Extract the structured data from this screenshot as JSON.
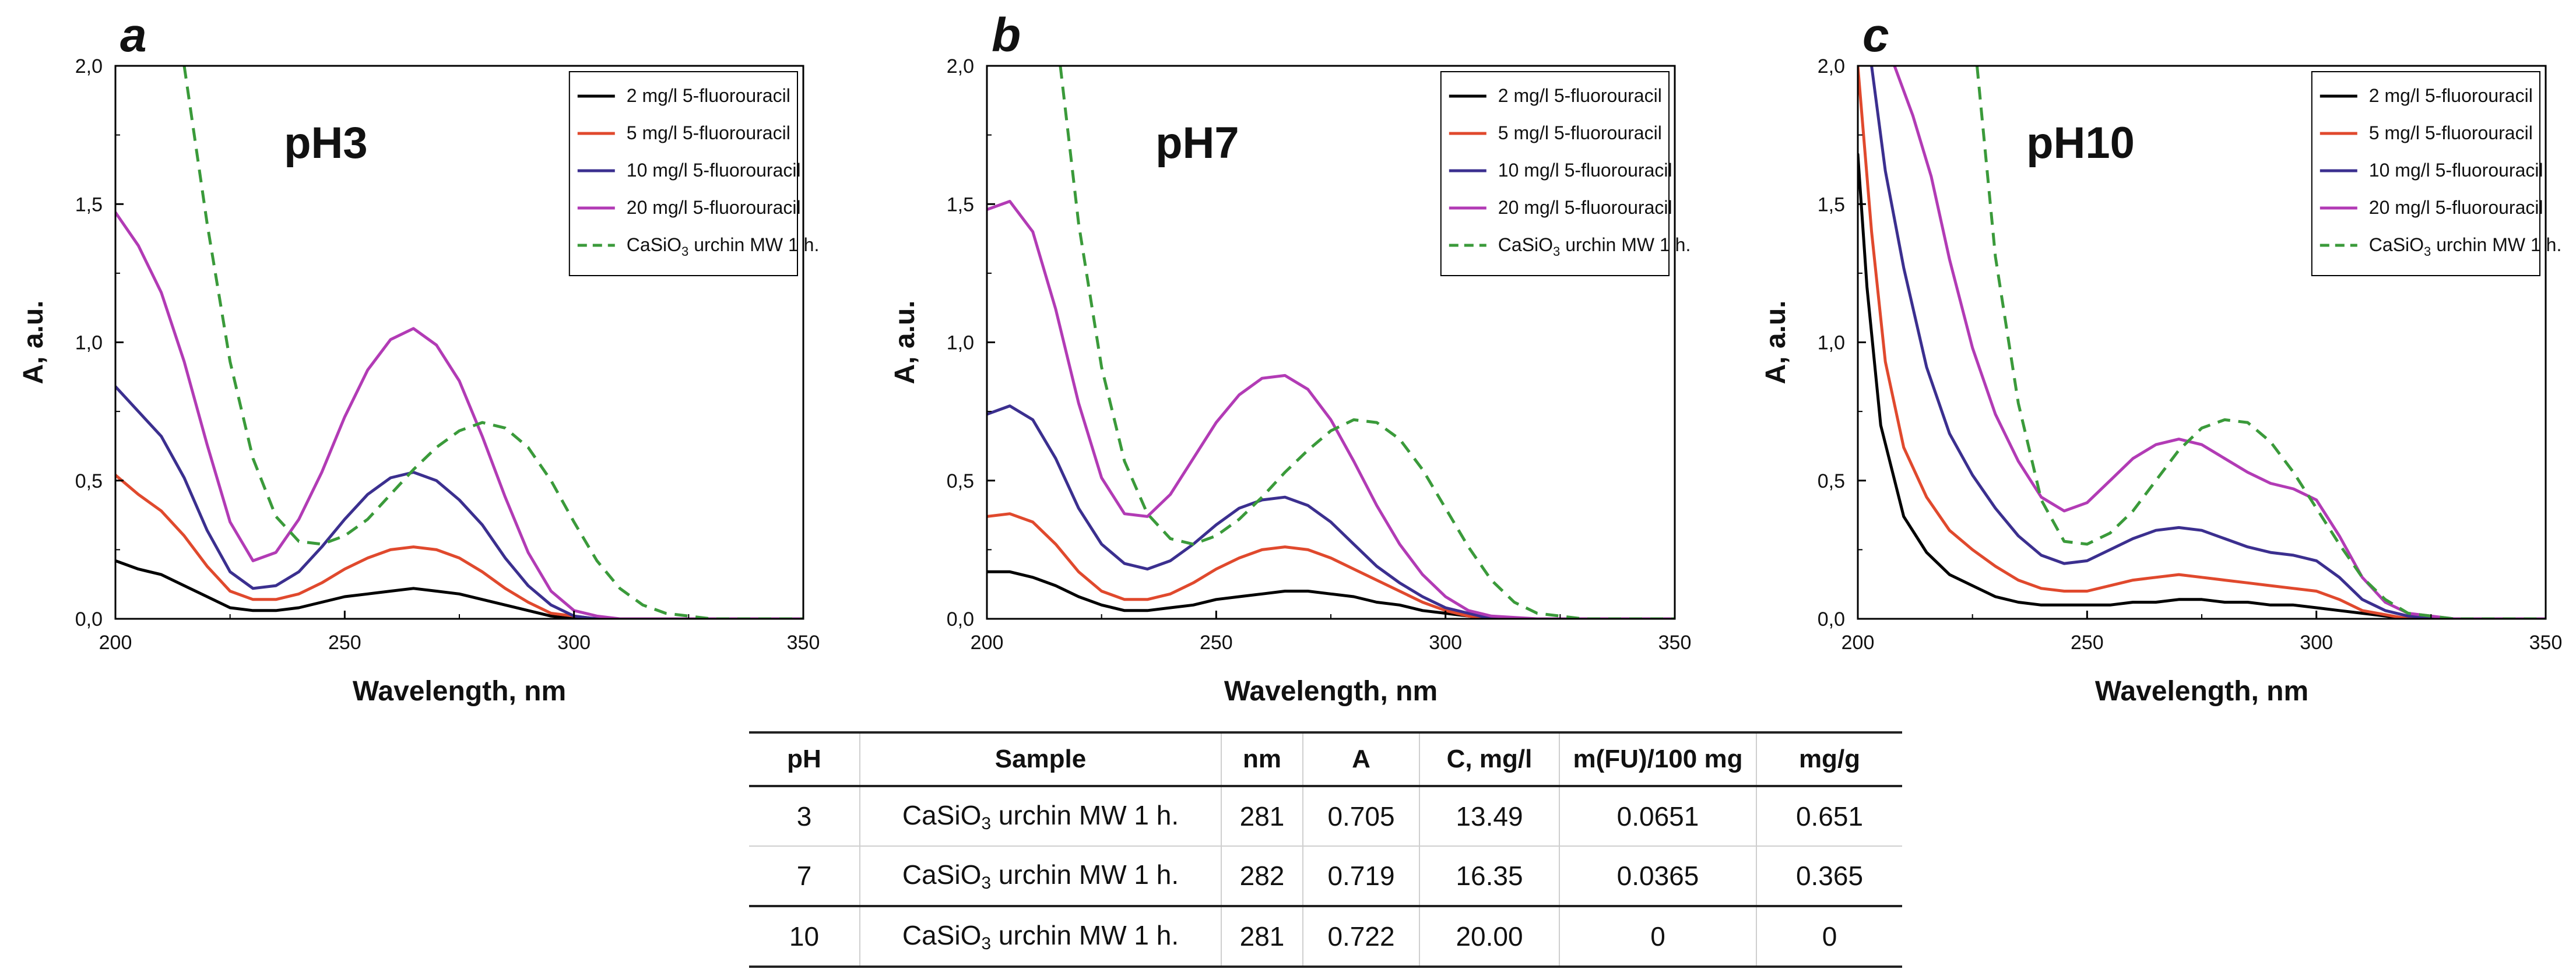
{
  "chart_data": [
    {
      "panel_letter": "a",
      "type": "line",
      "ph_label": "pH3",
      "xlabel": "Wavelength, nm",
      "ylabel": "A, a.u.",
      "xlim": [
        200,
        350
      ],
      "ylim": [
        0,
        2
      ],
      "xticks": [
        "200",
        "250",
        "300",
        "350"
      ],
      "yticks": [
        "0,0",
        "0,5",
        "1,0",
        "1,5",
        "2,0"
      ],
      "legend_position": "top-right",
      "series": [
        {
          "name": "2 mg/l 5-fluorouracil",
          "color": "#000000",
          "dashed": false,
          "x": [
            200,
            205,
            210,
            215,
            220,
            225,
            230,
            235,
            240,
            245,
            250,
            255,
            260,
            265,
            270,
            275,
            280,
            285,
            290,
            295,
            300,
            305,
            310,
            320,
            330,
            350
          ],
          "y": [
            0.21,
            0.18,
            0.16,
            0.12,
            0.08,
            0.04,
            0.03,
            0.03,
            0.04,
            0.06,
            0.08,
            0.09,
            0.1,
            0.11,
            0.1,
            0.09,
            0.07,
            0.05,
            0.03,
            0.01,
            0.0,
            0.0,
            0.0,
            0.0,
            0.0,
            0.0
          ]
        },
        {
          "name": "5 mg/l 5-fluorouracil",
          "color": "#e0492d",
          "dashed": false,
          "x": [
            200,
            205,
            210,
            215,
            220,
            225,
            230,
            235,
            240,
            245,
            250,
            255,
            260,
            265,
            270,
            275,
            280,
            285,
            290,
            295,
            300,
            305,
            310,
            320,
            330,
            350
          ],
          "y": [
            0.52,
            0.45,
            0.39,
            0.3,
            0.19,
            0.1,
            0.07,
            0.07,
            0.09,
            0.13,
            0.18,
            0.22,
            0.25,
            0.26,
            0.25,
            0.22,
            0.17,
            0.11,
            0.06,
            0.02,
            0.01,
            0.0,
            0.0,
            0.0,
            0.0,
            0.0
          ]
        },
        {
          "name": "10 mg/l 5-fluorouracil",
          "color": "#3b2f8f",
          "dashed": false,
          "x": [
            200,
            205,
            210,
            215,
            220,
            225,
            230,
            235,
            240,
            245,
            250,
            255,
            260,
            265,
            270,
            275,
            280,
            285,
            290,
            295,
            300,
            305,
            310,
            320,
            330,
            350
          ],
          "y": [
            0.84,
            0.75,
            0.66,
            0.51,
            0.32,
            0.17,
            0.11,
            0.12,
            0.17,
            0.26,
            0.36,
            0.45,
            0.51,
            0.53,
            0.5,
            0.43,
            0.34,
            0.22,
            0.12,
            0.05,
            0.01,
            0.0,
            0.0,
            0.0,
            0.0,
            0.0
          ]
        },
        {
          "name": "20 mg/l 5-fluorouracil",
          "color": "#b23bb5",
          "dashed": false,
          "x": [
            200,
            205,
            210,
            215,
            220,
            225,
            230,
            235,
            240,
            245,
            250,
            255,
            260,
            265,
            270,
            275,
            280,
            285,
            290,
            295,
            300,
            305,
            310,
            320,
            330,
            350
          ],
          "y": [
            1.47,
            1.35,
            1.18,
            0.93,
            0.63,
            0.35,
            0.21,
            0.24,
            0.36,
            0.53,
            0.73,
            0.9,
            1.01,
            1.05,
            0.99,
            0.86,
            0.66,
            0.44,
            0.24,
            0.1,
            0.03,
            0.01,
            0.0,
            0.0,
            0.0,
            0.0
          ]
        },
        {
          "name": "CaSiO3 urchin MW 1 h.",
          "color": "#3a9a3a",
          "dashed": true,
          "x": [
            215,
            220,
            225,
            230,
            235,
            240,
            245,
            250,
            255,
            260,
            265,
            270,
            275,
            280,
            285,
            290,
            295,
            300,
            305,
            310,
            315,
            320,
            330,
            340,
            350
          ],
          "y": [
            2.0,
            1.43,
            0.93,
            0.58,
            0.37,
            0.28,
            0.27,
            0.3,
            0.36,
            0.45,
            0.54,
            0.62,
            0.68,
            0.71,
            0.69,
            0.62,
            0.5,
            0.35,
            0.21,
            0.11,
            0.05,
            0.02,
            0.0,
            0.0,
            0.0
          ]
        }
      ]
    },
    {
      "panel_letter": "b",
      "type": "line",
      "ph_label": "pH7",
      "xlabel": "Wavelength, nm",
      "ylabel": "A, a.u.",
      "xlim": [
        200,
        350
      ],
      "ylim": [
        0,
        2
      ],
      "xticks": [
        "200",
        "250",
        "300",
        "350"
      ],
      "yticks": [
        "0,0",
        "0,5",
        "1,0",
        "1,5",
        "2,0"
      ],
      "legend_position": "top-right",
      "series": [
        {
          "name": "2 mg/l 5-fluorouracil",
          "color": "#000000",
          "dashed": false,
          "x": [
            200,
            205,
            210,
            215,
            220,
            225,
            230,
            235,
            240,
            245,
            250,
            255,
            260,
            265,
            270,
            275,
            280,
            285,
            290,
            295,
            300,
            305,
            310,
            320,
            330,
            350
          ],
          "y": [
            0.17,
            0.17,
            0.15,
            0.12,
            0.08,
            0.05,
            0.03,
            0.03,
            0.04,
            0.05,
            0.07,
            0.08,
            0.09,
            0.1,
            0.1,
            0.09,
            0.08,
            0.06,
            0.05,
            0.03,
            0.02,
            0.01,
            0.0,
            0.0,
            0.0,
            0.0
          ]
        },
        {
          "name": "5 mg/l 5-fluorouracil",
          "color": "#e0492d",
          "dashed": false,
          "x": [
            200,
            205,
            210,
            215,
            220,
            225,
            230,
            235,
            240,
            245,
            250,
            255,
            260,
            265,
            270,
            275,
            280,
            285,
            290,
            295,
            300,
            305,
            310,
            320,
            330,
            350
          ],
          "y": [
            0.37,
            0.38,
            0.35,
            0.27,
            0.17,
            0.1,
            0.07,
            0.07,
            0.09,
            0.13,
            0.18,
            0.22,
            0.25,
            0.26,
            0.25,
            0.22,
            0.18,
            0.14,
            0.1,
            0.06,
            0.03,
            0.01,
            0.0,
            0.0,
            0.0,
            0.0
          ]
        },
        {
          "name": "10 mg/l 5-fluorouracil",
          "color": "#3b2f8f",
          "dashed": false,
          "x": [
            200,
            205,
            210,
            215,
            220,
            225,
            230,
            235,
            240,
            245,
            250,
            255,
            260,
            265,
            270,
            275,
            280,
            285,
            290,
            295,
            300,
            305,
            310,
            320,
            330,
            350
          ],
          "y": [
            0.74,
            0.77,
            0.72,
            0.58,
            0.4,
            0.27,
            0.2,
            0.18,
            0.21,
            0.27,
            0.34,
            0.4,
            0.43,
            0.44,
            0.41,
            0.35,
            0.27,
            0.19,
            0.13,
            0.08,
            0.04,
            0.02,
            0.0,
            0.0,
            0.0,
            0.0
          ]
        },
        {
          "name": "20 mg/l 5-fluorouracil",
          "color": "#b23bb5",
          "dashed": false,
          "x": [
            200,
            205,
            210,
            215,
            220,
            225,
            230,
            235,
            240,
            245,
            250,
            255,
            260,
            265,
            270,
            275,
            280,
            285,
            290,
            295,
            300,
            305,
            310,
            320,
            330,
            350
          ],
          "y": [
            1.48,
            1.51,
            1.4,
            1.12,
            0.78,
            0.51,
            0.38,
            0.37,
            0.45,
            0.58,
            0.71,
            0.81,
            0.87,
            0.88,
            0.83,
            0.72,
            0.57,
            0.41,
            0.27,
            0.16,
            0.08,
            0.03,
            0.01,
            0.0,
            0.0,
            0.0
          ]
        },
        {
          "name": "CaSiO3 urchin MW 1 h.",
          "color": "#3a9a3a",
          "dashed": true,
          "x": [
            216,
            220,
            225,
            230,
            235,
            240,
            245,
            250,
            255,
            260,
            265,
            270,
            275,
            280,
            285,
            290,
            295,
            300,
            305,
            310,
            315,
            320,
            330,
            340,
            350
          ],
          "y": [
            2.0,
            1.43,
            0.91,
            0.57,
            0.38,
            0.29,
            0.27,
            0.3,
            0.36,
            0.44,
            0.53,
            0.61,
            0.68,
            0.72,
            0.71,
            0.65,
            0.54,
            0.4,
            0.26,
            0.14,
            0.06,
            0.02,
            0.0,
            0.0,
            0.0
          ]
        }
      ]
    },
    {
      "panel_letter": "c",
      "type": "line",
      "ph_label": "pH10",
      "xlabel": "Wavelength, nm",
      "ylabel": "A, a.u.",
      "xlim": [
        200,
        350
      ],
      "ylim": [
        0,
        2
      ],
      "xticks": [
        "200",
        "250",
        "300",
        "350"
      ],
      "yticks": [
        "0,0",
        "0,5",
        "1,0",
        "1,5",
        "2,0"
      ],
      "legend_position": "top-right",
      "series": [
        {
          "name": "2 mg/l 5-fluorouracil",
          "color": "#000000",
          "dashed": false,
          "x": [
            200,
            202,
            205,
            210,
            215,
            220,
            225,
            230,
            235,
            240,
            245,
            250,
            255,
            260,
            265,
            270,
            275,
            280,
            285,
            290,
            295,
            300,
            305,
            310,
            320,
            330,
            350
          ],
          "y": [
            1.68,
            1.2,
            0.7,
            0.37,
            0.24,
            0.16,
            0.12,
            0.08,
            0.06,
            0.05,
            0.05,
            0.05,
            0.05,
            0.06,
            0.06,
            0.07,
            0.07,
            0.06,
            0.06,
            0.05,
            0.05,
            0.04,
            0.03,
            0.02,
            0.0,
            0.0,
            0.0
          ]
        },
        {
          "name": "5 mg/l 5-fluorouracil",
          "color": "#e0492d",
          "dashed": false,
          "x": [
            200,
            203,
            206,
            210,
            215,
            220,
            225,
            230,
            235,
            240,
            245,
            250,
            255,
            260,
            265,
            270,
            275,
            280,
            285,
            290,
            295,
            300,
            305,
            310,
            320,
            330,
            350
          ],
          "y": [
            2.0,
            1.4,
            0.93,
            0.62,
            0.44,
            0.32,
            0.25,
            0.19,
            0.14,
            0.11,
            0.1,
            0.1,
            0.12,
            0.14,
            0.15,
            0.16,
            0.15,
            0.14,
            0.13,
            0.12,
            0.11,
            0.1,
            0.07,
            0.03,
            0.0,
            0.0,
            0.0
          ]
        },
        {
          "name": "10 mg/l 5-fluorouracil",
          "color": "#3b2f8f",
          "dashed": false,
          "x": [
            203,
            206,
            210,
            215,
            220,
            225,
            230,
            235,
            240,
            245,
            250,
            255,
            260,
            265,
            270,
            275,
            280,
            285,
            290,
            295,
            300,
            305,
            310,
            315,
            320,
            330,
            350
          ],
          "y": [
            2.0,
            1.62,
            1.27,
            0.91,
            0.67,
            0.52,
            0.4,
            0.3,
            0.23,
            0.2,
            0.21,
            0.25,
            0.29,
            0.32,
            0.33,
            0.32,
            0.29,
            0.26,
            0.24,
            0.23,
            0.21,
            0.15,
            0.07,
            0.03,
            0.01,
            0.0,
            0.0
          ]
        },
        {
          "name": "20 mg/l 5-fluorouracil",
          "color": "#b23bb5",
          "dashed": false,
          "x": [
            208,
            212,
            216,
            220,
            225,
            230,
            235,
            240,
            245,
            250,
            255,
            260,
            265,
            270,
            275,
            280,
            285,
            290,
            295,
            300,
            305,
            310,
            315,
            320,
            330,
            350
          ],
          "y": [
            2.0,
            1.82,
            1.6,
            1.3,
            0.98,
            0.74,
            0.57,
            0.44,
            0.39,
            0.42,
            0.5,
            0.58,
            0.63,
            0.65,
            0.63,
            0.58,
            0.53,
            0.49,
            0.47,
            0.43,
            0.3,
            0.15,
            0.06,
            0.02,
            0.0,
            0.0
          ]
        },
        {
          "name": "CaSiO3 urchin MW 1 h.",
          "color": "#3a9a3a",
          "dashed": true,
          "x": [
            226,
            230,
            235,
            240,
            245,
            250,
            255,
            260,
            265,
            270,
            275,
            280,
            285,
            290,
            295,
            300,
            305,
            310,
            315,
            320,
            330,
            340,
            350
          ],
          "y": [
            2.0,
            1.31,
            0.78,
            0.43,
            0.28,
            0.27,
            0.31,
            0.39,
            0.5,
            0.61,
            0.69,
            0.72,
            0.71,
            0.64,
            0.53,
            0.4,
            0.27,
            0.15,
            0.07,
            0.02,
            0.0,
            0.0,
            0.0
          ]
        }
      ]
    }
  ],
  "table": {
    "headers": [
      "pH",
      "Sample",
      "nm",
      "A",
      "C, mg/l",
      "m(FU)/100 mg",
      "mg/g"
    ],
    "rows": [
      {
        "ph": "3",
        "sample_pre": "CaSiO",
        "sample_sub": "3",
        "sample_post": " urchin MW 1 h.",
        "nm": "281",
        "a": "0.705",
        "c": "13.49",
        "m_fu": "0.0651",
        "mg_g": "0.651"
      },
      {
        "ph": "7",
        "sample_pre": "CaSiO",
        "sample_sub": "3",
        "sample_post": " urchin MW 1 h.",
        "nm": "282",
        "a": "0.719",
        "c": "16.35",
        "m_fu": "0.0365",
        "mg_g": "0.365"
      },
      {
        "ph": "10",
        "sample_pre": "CaSiO",
        "sample_sub": "3",
        "sample_post": " urchin MW 1 h.",
        "nm": "281",
        "a": "0.722",
        "c": "20.00",
        "m_fu": "0",
        "mg_g": "0"
      }
    ]
  }
}
